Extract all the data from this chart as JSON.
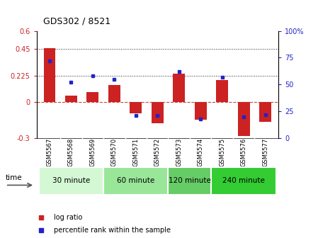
{
  "title": "GDS302 / 8521",
  "samples": [
    "GSM5567",
    "GSM5568",
    "GSM5569",
    "GSM5570",
    "GSM5571",
    "GSM5572",
    "GSM5573",
    "GSM5574",
    "GSM5575",
    "GSM5576",
    "GSM5577"
  ],
  "log_ratio": [
    0.453,
    0.055,
    0.085,
    0.145,
    -0.09,
    -0.175,
    0.24,
    -0.145,
    0.185,
    -0.28,
    -0.165
  ],
  "percentile_rank": [
    72,
    52,
    58,
    55,
    21,
    21,
    62,
    18,
    57,
    20,
    22
  ],
  "bar_color": "#cc2222",
  "dot_color": "#2222cc",
  "ylim_left": [
    -0.3,
    0.6
  ],
  "ylim_right": [
    0,
    100
  ],
  "yticks_left": [
    -0.3,
    0,
    0.225,
    0.45,
    0.6
  ],
  "yticks_right": [
    0,
    25,
    50,
    75,
    100
  ],
  "hlines": [
    0.225,
    0.45
  ],
  "hline_zero_color": "#cc4444",
  "hline_dotted_color": "#222222",
  "groups": [
    {
      "label": "30 minute",
      "start": 0,
      "end": 3,
      "color": "#d4f7d4"
    },
    {
      "label": "60 minute",
      "start": 3,
      "end": 6,
      "color": "#99e699"
    },
    {
      "label": "120 minute",
      "start": 6,
      "end": 8,
      "color": "#66cc66"
    },
    {
      "label": "240 minute",
      "start": 8,
      "end": 11,
      "color": "#33cc33"
    }
  ],
  "time_label": "time",
  "legend_bar_label": "log ratio",
  "legend_dot_label": "percentile rank within the sample",
  "plot_bg_color": "#ffffff",
  "xtick_bg_color": "#d8d8d8"
}
